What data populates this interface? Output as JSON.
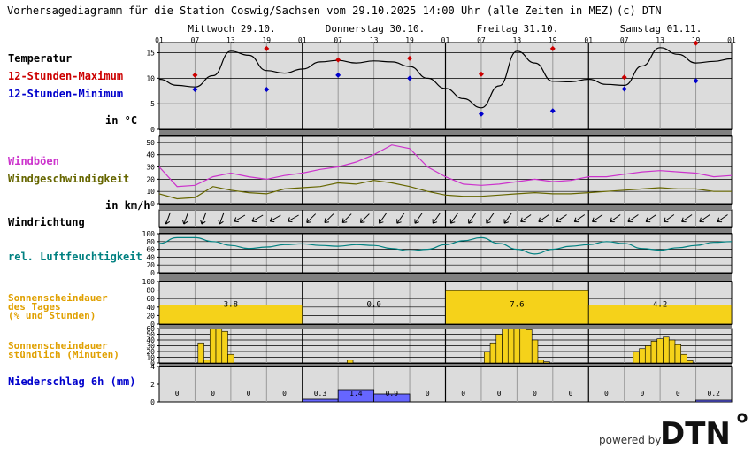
{
  "header": {
    "title": "Vorhersagediagramm für die Station Coswig/Sachsen vom 29.10.2025 14:00 Uhr (alle Zeiten in MEZ)",
    "copyright": "(c) DTN"
  },
  "days": [
    "Mittwoch 29.10.",
    "Donnerstag 30.10.",
    "Freitag 31.10.",
    "Samstag 01.11."
  ],
  "hour_labels": [
    "01",
    "07",
    "13",
    "19",
    "01",
    "07",
    "13",
    "19",
    "01",
    "07",
    "13",
    "19",
    "01",
    "07",
    "13",
    "19",
    "01"
  ],
  "labels": {
    "temperature": "Temperatur",
    "tmax": "12-Stunden-Maximum",
    "tmin": "12-Stunden-Minimum",
    "temp_unit": "in °C",
    "gusts": "Windböen",
    "windspeed": "Windgeschwindigkeit",
    "wind_unit": "in km/h",
    "winddir": "Windrichtung",
    "humidity": "rel. Luftfeuchtigkeit",
    "sun_daily": [
      "Sonnenscheindauer",
      "des Tages",
      "(% und Stunden)"
    ],
    "sun_hourly": [
      "Sonnenscheindauer",
      "stündlich (Minuten)"
    ],
    "precip": "Niederschlag 6h (mm)"
  },
  "footer": {
    "powered_by": "powered by",
    "logo": "DTN"
  },
  "colors": {
    "temp_line": "#000000",
    "tmax": "#cc0000",
    "tmin": "#0000cc",
    "gust_line": "#cc33cc",
    "wind_line": "#666600",
    "humidity_line": "#008080",
    "sun": "#f5d21a",
    "precip": "#6666ff",
    "panel": "#dcdcdc",
    "title_gust": "#cc33cc",
    "title_wind": "#666600",
    "title_hum": "#008080",
    "title_sun": "#e0a000"
  },
  "chart_data": [
    {
      "type": "line",
      "name": "temperature",
      "ylim": [
        0,
        17
      ],
      "yticks": [
        0,
        5,
        10,
        15
      ],
      "x": [
        0,
        3,
        6,
        9,
        12,
        15,
        18,
        21,
        24,
        27,
        30,
        33,
        36,
        39,
        42,
        45,
        48,
        51,
        54,
        57,
        60,
        63,
        66,
        69,
        72,
        75,
        78,
        81,
        84,
        87,
        90,
        93,
        96
      ],
      "values": [
        9.8,
        8.6,
        8.3,
        10.5,
        15.3,
        14.5,
        11.5,
        11.0,
        11.8,
        13.2,
        13.5,
        13.0,
        13.4,
        13.2,
        12.3,
        10.0,
        8.0,
        6.0,
        4.2,
        8.5,
        15.3,
        13.0,
        9.4,
        9.3,
        9.8,
        8.8,
        8.6,
        12.4,
        16.0,
        14.7,
        13.0,
        13.3,
        13.8
      ],
      "tmax": [
        {
          "x": 6,
          "v": 10.6
        },
        {
          "x": 18,
          "v": 15.8
        },
        {
          "x": 30,
          "v": 13.6
        },
        {
          "x": 42,
          "v": 13.9
        },
        {
          "x": 54,
          "v": 10.8
        },
        {
          "x": 66,
          "v": 15.8
        },
        {
          "x": 78,
          "v": 10.2
        },
        {
          "x": 90,
          "v": 16.9
        }
      ],
      "tmin": [
        {
          "x": 6,
          "v": 7.8
        },
        {
          "x": 18,
          "v": 7.8
        },
        {
          "x": 30,
          "v": 10.6
        },
        {
          "x": 42,
          "v": 10.0
        },
        {
          "x": 54,
          "v": 3.0
        },
        {
          "x": 66,
          "v": 3.6
        },
        {
          "x": 78,
          "v": 7.9
        },
        {
          "x": 90,
          "v": 9.5
        }
      ]
    },
    {
      "type": "line",
      "name": "wind",
      "ylim": [
        0,
        55
      ],
      "yticks": [
        0,
        10,
        20,
        30,
        40,
        50
      ],
      "x": [
        0,
        3,
        6,
        9,
        12,
        15,
        18,
        21,
        24,
        27,
        30,
        33,
        36,
        39,
        42,
        45,
        48,
        51,
        54,
        57,
        60,
        63,
        66,
        69,
        72,
        75,
        78,
        81,
        84,
        87,
        90,
        93,
        96
      ],
      "gusts": [
        30,
        14,
        15,
        22,
        25,
        22,
        20,
        23,
        25,
        28,
        30,
        34,
        40,
        48,
        45,
        30,
        22,
        16,
        15,
        16,
        18,
        20,
        18,
        19,
        22,
        22,
        24,
        26,
        27,
        26,
        25,
        22,
        23
      ],
      "speed": [
        8,
        4,
        5,
        14,
        11,
        9,
        8,
        12,
        13,
        14,
        17,
        16,
        19,
        17,
        14,
        10,
        7,
        6,
        6,
        7,
        8,
        9,
        8,
        8,
        9,
        10,
        11,
        12,
        13,
        12,
        12,
        10,
        10
      ]
    },
    {
      "type": "line",
      "name": "humidity",
      "ylim": [
        0,
        100
      ],
      "yticks": [
        0,
        20,
        40,
        60,
        80,
        100
      ],
      "x": [
        0,
        3,
        6,
        9,
        12,
        15,
        18,
        21,
        24,
        27,
        30,
        33,
        36,
        39,
        42,
        45,
        48,
        51,
        54,
        57,
        60,
        63,
        66,
        69,
        72,
        75,
        78,
        81,
        84,
        87,
        90,
        93,
        96
      ],
      "values": [
        75,
        90,
        90,
        80,
        70,
        62,
        66,
        72,
        74,
        70,
        68,
        72,
        70,
        62,
        56,
        60,
        72,
        82,
        90,
        75,
        60,
        48,
        60,
        68,
        72,
        80,
        75,
        62,
        58,
        64,
        70,
        78,
        80
      ]
    },
    {
      "type": "bar",
      "name": "sun_daily",
      "ylim": [
        0,
        100
      ],
      "yticks": [
        0,
        20,
        40,
        60,
        80,
        100
      ],
      "categories": [
        "29.10.",
        "30.10.",
        "31.10.",
        "01.11."
      ],
      "percent": [
        45,
        0,
        79,
        45
      ],
      "hours": [
        "3.8",
        "0.0",
        "7.6",
        "4.2"
      ]
    },
    {
      "type": "bar",
      "name": "sun_hourly",
      "ylim": [
        0,
        60
      ],
      "yticks": [
        0,
        10,
        20,
        30,
        40,
        50,
        60
      ],
      "hours": [
        7,
        8,
        9,
        10,
        11,
        12,
        32,
        55,
        56,
        57,
        58,
        59,
        60,
        61,
        62,
        63,
        64,
        65,
        80,
        81,
        82,
        83,
        84,
        85,
        86,
        87,
        88,
        89
      ],
      "minutes": [
        35,
        5,
        60,
        60,
        55,
        15,
        5,
        20,
        35,
        50,
        60,
        60,
        60,
        60,
        58,
        40,
        5,
        2,
        20,
        25,
        30,
        38,
        42,
        45,
        40,
        32,
        15,
        4
      ]
    },
    {
      "type": "bar",
      "name": "precip",
      "ylim": [
        0,
        4
      ],
      "yticks": [
        0,
        2,
        4
      ],
      "values": [
        0,
        0,
        0,
        0,
        0.3,
        1.4,
        0.9,
        0,
        0,
        0,
        0,
        0,
        0,
        0,
        0,
        0.2
      ],
      "labels": [
        "0",
        "0",
        "0",
        "0",
        "0.3",
        "1.4",
        "0.9",
        "0",
        "0",
        "0",
        "0",
        "0",
        "0",
        "0",
        "0",
        "0.2"
      ]
    }
  ]
}
